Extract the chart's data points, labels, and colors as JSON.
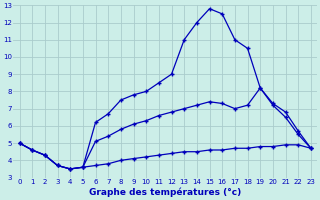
{
  "xlabel": "Graphe des températures (°c)",
  "xlim": [
    -0.5,
    23.5
  ],
  "ylim": [
    3,
    13
  ],
  "xticks": [
    0,
    1,
    2,
    3,
    4,
    5,
    6,
    7,
    8,
    9,
    10,
    11,
    12,
    13,
    14,
    15,
    16,
    17,
    18,
    19,
    20,
    21,
    22,
    23
  ],
  "yticks": [
    3,
    4,
    5,
    6,
    7,
    8,
    9,
    10,
    11,
    12,
    13
  ],
  "bg_color": "#cceee8",
  "grid_color": "#aacccc",
  "line_color": "#0000bb",
  "line1_x": [
    0,
    1,
    2,
    3,
    4,
    5,
    6,
    7,
    8,
    9,
    10,
    11,
    12,
    13,
    14,
    15,
    16,
    17,
    18,
    19,
    20,
    21,
    22,
    23
  ],
  "line1_y": [
    5.0,
    4.6,
    4.3,
    3.7,
    3.5,
    3.6,
    3.7,
    3.8,
    4.0,
    4.1,
    4.2,
    4.3,
    4.4,
    4.5,
    4.5,
    4.6,
    4.6,
    4.7,
    4.7,
    4.8,
    4.8,
    4.9,
    4.9,
    4.7
  ],
  "line2_x": [
    0,
    1,
    2,
    3,
    4,
    5,
    6,
    7,
    8,
    9,
    10,
    11,
    12,
    13,
    14,
    15,
    16,
    17,
    18,
    19,
    20,
    21,
    22,
    23
  ],
  "line2_y": [
    5.0,
    4.6,
    4.3,
    3.7,
    3.5,
    3.6,
    6.2,
    6.7,
    7.5,
    7.8,
    8.0,
    8.5,
    9.0,
    11.0,
    12.0,
    12.8,
    12.5,
    11.0,
    10.5,
    8.2,
    7.2,
    6.5,
    5.5,
    4.7
  ],
  "line3_x": [
    0,
    1,
    2,
    3,
    4,
    5,
    6,
    7,
    8,
    9,
    10,
    11,
    12,
    13,
    14,
    15,
    16,
    17,
    18,
    19,
    20,
    21,
    22,
    23
  ],
  "line3_y": [
    5.0,
    4.6,
    4.3,
    3.7,
    3.5,
    3.6,
    5.1,
    5.4,
    5.8,
    6.1,
    6.3,
    6.6,
    6.8,
    7.0,
    7.2,
    7.4,
    7.3,
    7.0,
    7.2,
    8.2,
    7.3,
    6.8,
    5.7,
    4.7
  ]
}
